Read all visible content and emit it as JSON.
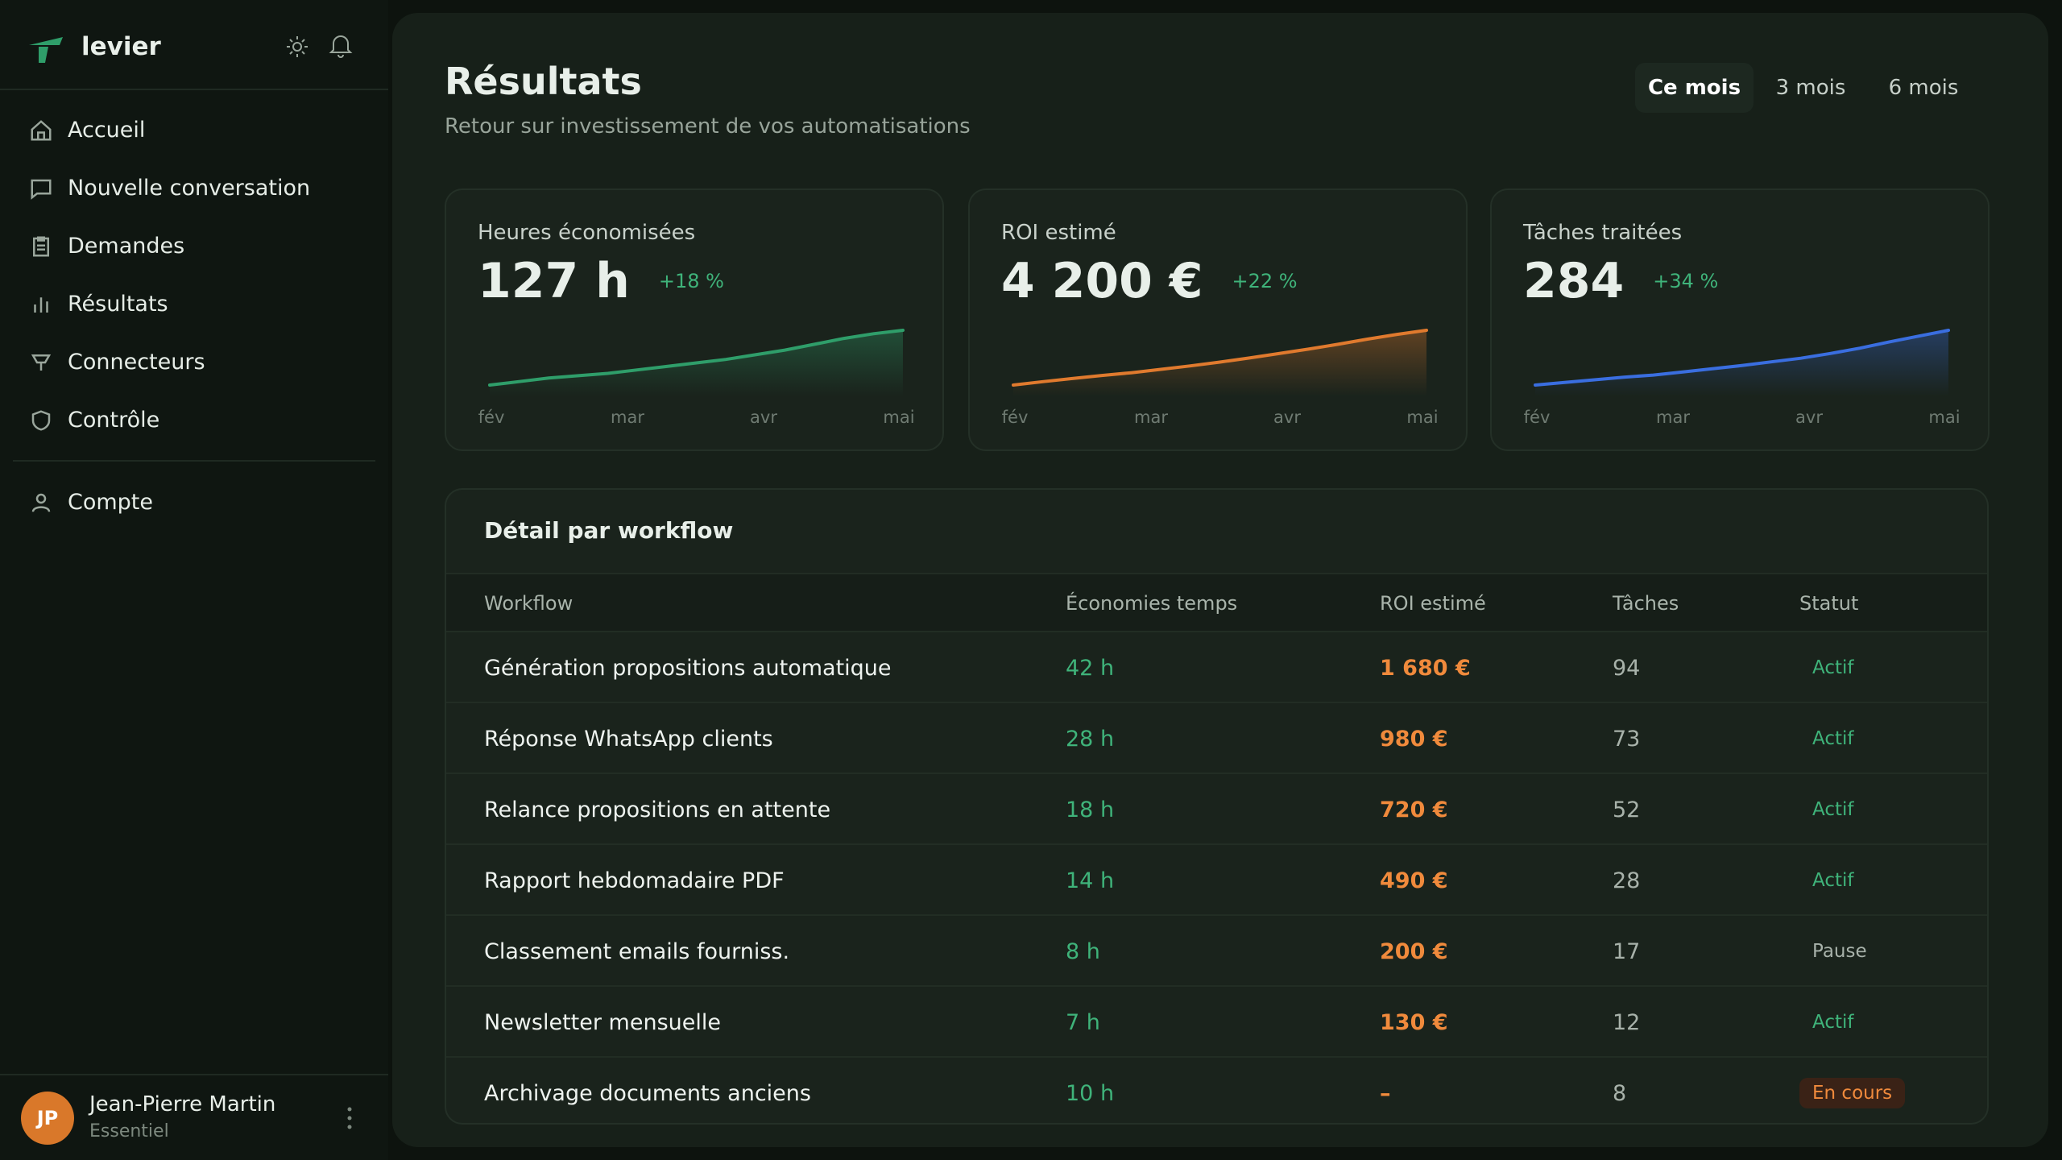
{
  "app": {
    "name": "levier"
  },
  "nav": [
    {
      "label": "Accueil",
      "active": false
    },
    {
      "label": "Nouvelle conversation",
      "active": false
    },
    {
      "label": "Demandes",
      "active": false
    },
    {
      "label": "Résultats",
      "active": true
    },
    {
      "label": "Connecteurs",
      "active": false
    },
    {
      "label": "Contrôle",
      "active": false
    }
  ],
  "nav_secondary": [
    {
      "label": "Compte"
    }
  ],
  "user": {
    "initials": "JP",
    "name": "Jean-Pierre Martin",
    "plan": "Essentiel"
  },
  "header": {
    "title": "Résultats",
    "subtitle": "Retour sur investissement de vos automatisations"
  },
  "periods": {
    "options": [
      "Ce mois",
      "3 mois",
      "6 mois"
    ],
    "selected": 0
  },
  "metrics": [
    {
      "label": "Heures économisées",
      "value": "127 h",
      "delta": "+18 %",
      "color": "#2f9e6a",
      "months": [
        "fév",
        "mar",
        "avr",
        "mai"
      ],
      "trend": [
        80,
        83,
        86,
        88,
        90,
        93,
        96,
        99,
        102,
        106,
        110,
        115,
        120,
        124,
        127
      ]
    },
    {
      "label": "ROI estimé",
      "value": "4 200 €",
      "delta": "+22 %",
      "color": "#e07a2e",
      "months": [
        "fév",
        "mar",
        "avr",
        "mai"
      ],
      "trend": [
        2600,
        2700,
        2790,
        2880,
        2960,
        3060,
        3160,
        3270,
        3390,
        3520,
        3650,
        3790,
        3940,
        4080,
        4200
      ]
    },
    {
      "label": "Tâches traitées",
      "value": "284",
      "delta": "+34 %",
      "color": "#3a6ee0",
      "months": [
        "fév",
        "mar",
        "avr",
        "mai"
      ],
      "trend": [
        180,
        185,
        190,
        195,
        199,
        205,
        211,
        217,
        224,
        231,
        240,
        250,
        262,
        273,
        284
      ]
    }
  ],
  "table": {
    "title": "Détail par workflow",
    "columns": [
      "Workflow",
      "Économies temps",
      "ROI estimé",
      "Tâches",
      "Statut"
    ],
    "rows": [
      {
        "cells": [
          "Génération propositions automatique",
          "42 h",
          "1 680 €",
          "94",
          "Actif"
        ],
        "status_color": "#3fb37a",
        "status_bg": "transparent"
      },
      {
        "cells": [
          "Réponse WhatsApp clients",
          "28 h",
          "980 €",
          "73",
          "Actif"
        ],
        "status_color": "#3fb37a",
        "status_bg": "transparent"
      },
      {
        "cells": [
          "Relance propositions en attente",
          "18 h",
          "720 €",
          "52",
          "Actif"
        ],
        "status_color": "#3fb37a",
        "status_bg": "transparent"
      },
      {
        "cells": [
          "Rapport hebdomadaire PDF",
          "14 h",
          "490 €",
          "28",
          "Actif"
        ],
        "status_color": "#3fb37a",
        "status_bg": "transparent"
      },
      {
        "cells": [
          "Classement emails fourniss.",
          "8 h",
          "200 €",
          "17",
          "Pause"
        ],
        "status_color": "#a8b2aa",
        "status_bg": "transparent"
      },
      {
        "cells": [
          "Newsletter mensuelle",
          "7 h",
          "130 €",
          "12",
          "Actif"
        ],
        "status_color": "#3fb37a",
        "status_bg": "transparent"
      },
      {
        "cells": [
          "Archivage documents anciens",
          "10 h",
          "–",
          "8",
          "En cours"
        ],
        "status_color": "#f08a3c",
        "status_bg": "#3a2216"
      }
    ]
  }
}
